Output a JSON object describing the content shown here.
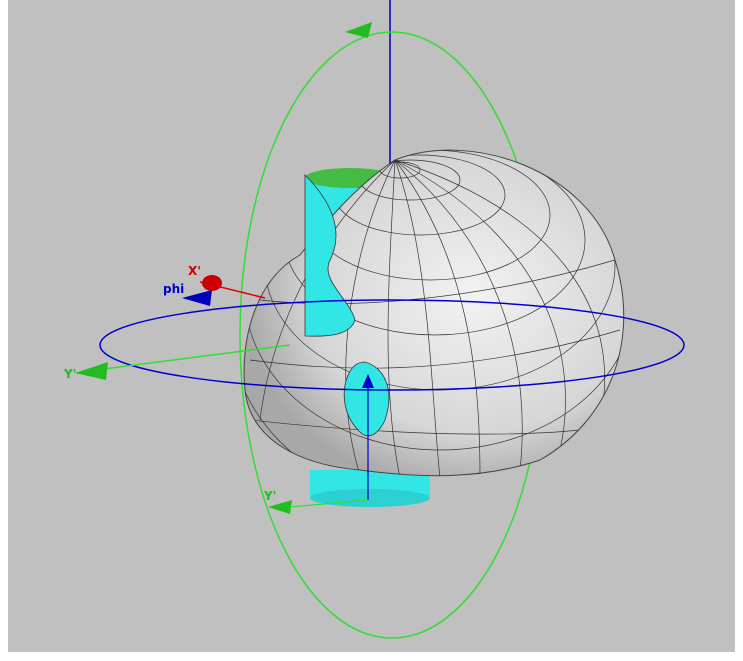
{
  "labels": {
    "phi": "phi",
    "x_axis": "X'",
    "y_axis": "Y'",
    "y_axis_lower": "Y'"
  }
}
